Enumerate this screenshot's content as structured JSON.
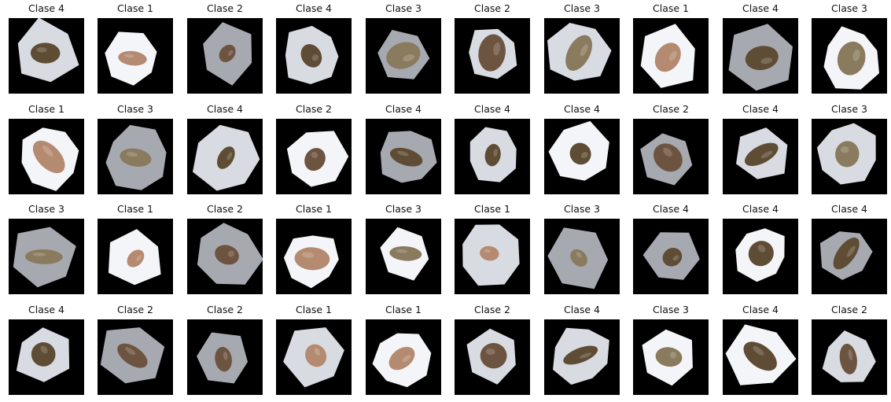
{
  "grid": {
    "rows": 4,
    "cols": 10,
    "items": [
      {
        "label": "Clase 4",
        "variant": "light"
      },
      {
        "label": "Clase 1",
        "variant": "white"
      },
      {
        "label": "Clase 2",
        "variant": "gray"
      },
      {
        "label": "Clase 4",
        "variant": "light"
      },
      {
        "label": "Clase 3",
        "variant": "gray"
      },
      {
        "label": "Clase 2",
        "variant": "light"
      },
      {
        "label": "Clase 3",
        "variant": "light"
      },
      {
        "label": "Clase 1",
        "variant": "white"
      },
      {
        "label": "Clase 4",
        "variant": "gray"
      },
      {
        "label": "Clase 3",
        "variant": "white"
      },
      {
        "label": "Clase 1",
        "variant": "white"
      },
      {
        "label": "Clase 3",
        "variant": "gray"
      },
      {
        "label": "Clase 4",
        "variant": "light"
      },
      {
        "label": "Clase 2",
        "variant": "white"
      },
      {
        "label": "Clase 4",
        "variant": "gray"
      },
      {
        "label": "Clase 4",
        "variant": "light"
      },
      {
        "label": "Clase 4",
        "variant": "white"
      },
      {
        "label": "Clase 2",
        "variant": "gray"
      },
      {
        "label": "Clase 4",
        "variant": "light"
      },
      {
        "label": "Clase 3",
        "variant": "light"
      },
      {
        "label": "Clase 3",
        "variant": "gray"
      },
      {
        "label": "Clase 1",
        "variant": "white"
      },
      {
        "label": "Clase 2",
        "variant": "gray"
      },
      {
        "label": "Clase 1",
        "variant": "white"
      },
      {
        "label": "Clase 3",
        "variant": "white"
      },
      {
        "label": "Clase 1",
        "variant": "light"
      },
      {
        "label": "Clase 3",
        "variant": "gray"
      },
      {
        "label": "Clase 4",
        "variant": "gray"
      },
      {
        "label": "Clase 4",
        "variant": "white"
      },
      {
        "label": "Clase 4",
        "variant": "gray"
      },
      {
        "label": "Clase 4",
        "variant": "light"
      },
      {
        "label": "Clase 2",
        "variant": "gray"
      },
      {
        "label": "Clase 2",
        "variant": "gray"
      },
      {
        "label": "Clase 1",
        "variant": "light"
      },
      {
        "label": "Clase 1",
        "variant": "white"
      },
      {
        "label": "Clase 2",
        "variant": "light"
      },
      {
        "label": "Clase 4",
        "variant": "light"
      },
      {
        "label": "Clase 3",
        "variant": "white"
      },
      {
        "label": "Clase 4",
        "variant": "white"
      },
      {
        "label": "Clase 2",
        "variant": "light"
      }
    ]
  },
  "colors": {
    "background": "#ffffff",
    "frame": "#000000",
    "title_text": "#111111",
    "surface_light": "#d9dbe2",
    "surface_white": "#f4f5f8",
    "surface_gray": "#a7a9b1",
    "bean_class_1": "#b48a70",
    "bean_class_2": "#6d5440",
    "bean_class_3": "#8a7a5e",
    "bean_class_4": "#5f4c34"
  },
  "icons": {
    "bean": "bean-icon",
    "surface": "surface-patch-icon"
  }
}
